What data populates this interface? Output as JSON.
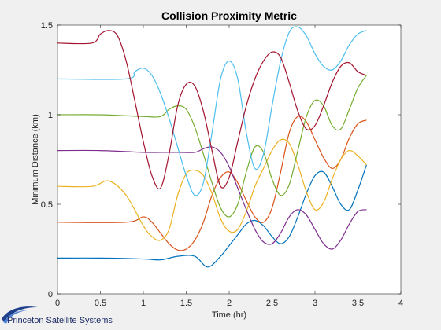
{
  "chart_data": {
    "type": "line",
    "title": "Collision Proximity Metric",
    "xlabel": "Time (hr)",
    "ylabel": "Minimum Distance (km)",
    "xlim": [
      0,
      4
    ],
    "ylim": [
      0,
      1.5
    ],
    "xticks": [
      0,
      0.5,
      1,
      1.5,
      2,
      2.5,
      3,
      3.5,
      4
    ],
    "yticks": [
      0,
      0.5,
      1,
      1.5
    ],
    "xtick_labels": [
      "0",
      "0.5",
      "1",
      "1.5",
      "2",
      "2.5",
      "3",
      "3.5",
      "4"
    ],
    "ytick_labels": [
      "0",
      "0.5",
      "1",
      "1.5"
    ],
    "grid": false,
    "legend": "none",
    "series": [
      {
        "color": "#0072BD",
        "x": [
          0,
          0.5,
          1.0,
          1.2,
          1.4,
          1.6,
          1.75,
          1.9,
          2.0,
          2.1,
          2.2,
          2.3,
          2.4,
          2.5,
          2.6,
          2.7,
          2.8,
          2.9,
          3.0,
          3.1,
          3.2,
          3.3,
          3.4,
          3.5,
          3.6
        ],
        "y": [
          0.2,
          0.2,
          0.195,
          0.19,
          0.21,
          0.21,
          0.15,
          0.21,
          0.27,
          0.33,
          0.39,
          0.41,
          0.38,
          0.32,
          0.28,
          0.32,
          0.43,
          0.56,
          0.66,
          0.68,
          0.6,
          0.5,
          0.47,
          0.58,
          0.72
        ]
      },
      {
        "color": "#D95319",
        "x": [
          0,
          0.8,
          1.0,
          1.1,
          1.2,
          1.3,
          1.4,
          1.5,
          1.6,
          1.7,
          1.8,
          1.9,
          2.0,
          2.1,
          2.2,
          2.3,
          2.4,
          2.5,
          2.6,
          2.7,
          2.8,
          2.9,
          3.0,
          3.1,
          3.2,
          3.3,
          3.4,
          3.5,
          3.6
        ],
        "y": [
          0.4,
          0.4,
          0.43,
          0.4,
          0.34,
          0.28,
          0.245,
          0.25,
          0.3,
          0.4,
          0.55,
          0.65,
          0.68,
          0.62,
          0.52,
          0.43,
          0.4,
          0.48,
          0.68,
          0.9,
          0.99,
          0.96,
          0.86,
          0.76,
          0.7,
          0.75,
          0.87,
          0.95,
          0.97
        ]
      },
      {
        "color": "#EDB120",
        "x": [
          0,
          0.4,
          0.6,
          0.8,
          1.0,
          1.1,
          1.2,
          1.3,
          1.4,
          1.5,
          1.6,
          1.7,
          1.8,
          1.9,
          2.0,
          2.1,
          2.2,
          2.3,
          2.4,
          2.5,
          2.6,
          2.7,
          2.8,
          2.9,
          3.0,
          3.1,
          3.2,
          3.3,
          3.4,
          3.5,
          3.6
        ],
        "y": [
          0.6,
          0.6,
          0.63,
          0.55,
          0.38,
          0.32,
          0.3,
          0.36,
          0.55,
          0.67,
          0.69,
          0.66,
          0.56,
          0.42,
          0.35,
          0.36,
          0.46,
          0.6,
          0.7,
          0.8,
          0.86,
          0.84,
          0.72,
          0.57,
          0.47,
          0.51,
          0.64,
          0.75,
          0.8,
          0.77,
          0.72
        ]
      },
      {
        "color": "#7E2F8E",
        "x": [
          0,
          0.5,
          1.0,
          1.2,
          1.4,
          1.6,
          1.7,
          1.8,
          1.9,
          2.0,
          2.1,
          2.2,
          2.3,
          2.4,
          2.5,
          2.6,
          2.7,
          2.8,
          2.9,
          3.0,
          3.1,
          3.2,
          3.3,
          3.4,
          3.5,
          3.6
        ],
        "y": [
          0.8,
          0.8,
          0.79,
          0.79,
          0.79,
          0.79,
          0.81,
          0.82,
          0.79,
          0.71,
          0.59,
          0.47,
          0.36,
          0.29,
          0.28,
          0.34,
          0.43,
          0.47,
          0.44,
          0.36,
          0.28,
          0.25,
          0.3,
          0.39,
          0.46,
          0.47
        ]
      },
      {
        "color": "#77AC30",
        "x": [
          0,
          0.5,
          1.0,
          1.2,
          1.3,
          1.4,
          1.5,
          1.6,
          1.7,
          1.8,
          1.9,
          2.0,
          2.1,
          2.2,
          2.3,
          2.4,
          2.5,
          2.6,
          2.7,
          2.8,
          2.9,
          3.0,
          3.1,
          3.2,
          3.3,
          3.4,
          3.5,
          3.6
        ],
        "y": [
          1.0,
          1.0,
          0.99,
          0.99,
          1.03,
          1.05,
          1.03,
          0.93,
          0.78,
          0.62,
          0.48,
          0.43,
          0.5,
          0.68,
          0.82,
          0.79,
          0.64,
          0.55,
          0.61,
          0.8,
          0.99,
          1.08,
          1.05,
          0.94,
          0.92,
          1.03,
          1.15,
          1.22
        ]
      },
      {
        "color": "#4DBEEE",
        "x": [
          0,
          0.8,
          0.9,
          1.0,
          1.1,
          1.2,
          1.3,
          1.4,
          1.5,
          1.6,
          1.7,
          1.8,
          1.9,
          2.0,
          2.1,
          2.2,
          2.3,
          2.4,
          2.5,
          2.6,
          2.7,
          2.8,
          2.9,
          3.0,
          3.1,
          3.2,
          3.3,
          3.4,
          3.5,
          3.6
        ],
        "y": [
          1.2,
          1.2,
          1.24,
          1.26,
          1.22,
          1.12,
          0.98,
          0.82,
          0.66,
          0.55,
          0.62,
          0.9,
          1.2,
          1.3,
          1.2,
          0.9,
          0.7,
          0.78,
          1.05,
          1.3,
          1.46,
          1.49,
          1.44,
          1.34,
          1.27,
          1.25,
          1.3,
          1.39,
          1.45,
          1.47
        ]
      },
      {
        "color": "#A2142F",
        "x": [
          0,
          0.4,
          0.5,
          0.6,
          0.7,
          0.8,
          0.9,
          1.0,
          1.1,
          1.2,
          1.3,
          1.4,
          1.5,
          1.6,
          1.7,
          1.8,
          1.9,
          2.0,
          2.1,
          2.2,
          2.3,
          2.4,
          2.5,
          2.6,
          2.7,
          2.8,
          2.9,
          3.0,
          3.1,
          3.2,
          3.3,
          3.4,
          3.5,
          3.6
        ],
        "y": [
          1.4,
          1.4,
          1.45,
          1.47,
          1.44,
          1.3,
          1.08,
          0.85,
          0.66,
          0.59,
          0.78,
          1.05,
          1.17,
          1.16,
          1.02,
          0.8,
          0.6,
          0.65,
          0.85,
          1.05,
          1.2,
          1.3,
          1.35,
          1.32,
          1.18,
          1.02,
          0.92,
          0.94,
          1.05,
          1.18,
          1.27,
          1.29,
          1.24,
          1.22
        ]
      }
    ]
  },
  "logo": {
    "text": "Princeton Satellite Systems"
  },
  "colors": {
    "figure_background": "#f0f0f0",
    "axes_background": "#ffffff",
    "logo_swoosh": "#1e3f8a"
  }
}
